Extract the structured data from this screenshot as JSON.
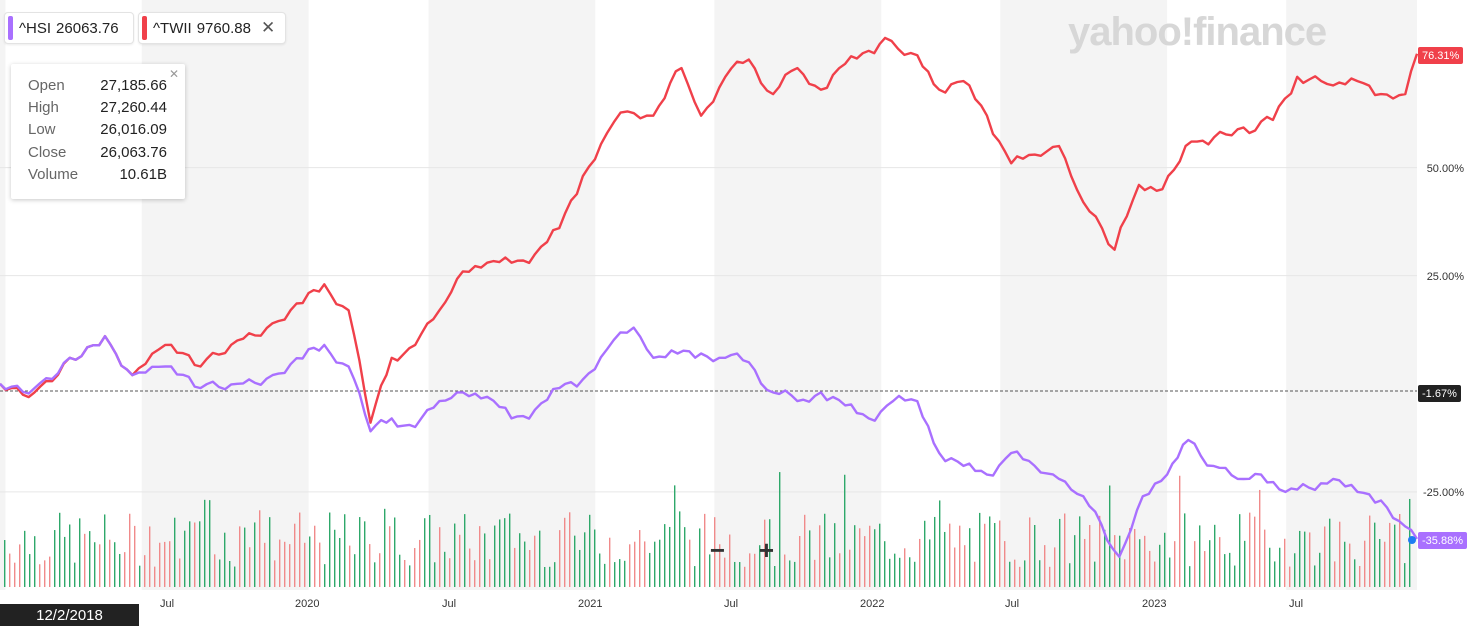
{
  "symbols": [
    {
      "symbol": "^HSI",
      "value": "26063.76",
      "color": "#a970ff"
    },
    {
      "symbol": "^TWII",
      "value": "9760.88",
      "color": "#f0404a",
      "close_label": "✕"
    }
  ],
  "tooltip": {
    "close_label": "✕",
    "rows": [
      {
        "label": "Open",
        "value": "27,185.66"
      },
      {
        "label": "High",
        "value": "27,260.44"
      },
      {
        "label": "Low",
        "value": "26,016.09"
      },
      {
        "label": "Close",
        "value": "26,063.76"
      },
      {
        "label": "Volume",
        "value": "10.61B"
      }
    ]
  },
  "watermark": "yahoo!finance",
  "zoom": {
    "minus": "−",
    "plus": "+"
  },
  "crosshair_date": "12/2/2018",
  "colors": {
    "twii": "#f0404a",
    "hsi": "#a970ff",
    "vol_up": "#2ea86a",
    "vol_down": "#f08a8a",
    "band": "#f4f4f4"
  },
  "chart_data": {
    "type": "line",
    "x_axis": {
      "ticks": [
        "Jul",
        "2020",
        "Jul",
        "2021",
        "Jul",
        "2022",
        "Jul",
        "2023",
        "Jul"
      ],
      "range": [
        "2018-12-02",
        "2023-11-15"
      ]
    },
    "y_axis": {
      "ticks": [
        "50.00%",
        "25.00%",
        "-25.00%"
      ],
      "ylim": [
        -35,
        80
      ]
    },
    "reference_line": {
      "value": -1.67,
      "label": "-1.67%"
    },
    "series": [
      {
        "name": "^TWII",
        "color": "#f0404a",
        "last_label": "76.31%",
        "points": [
          [
            "2018-12-02",
            0
          ],
          [
            "2019-01-15",
            -2
          ],
          [
            "2019-03-01",
            6
          ],
          [
            "2019-04-15",
            11
          ],
          [
            "2019-05-20",
            2
          ],
          [
            "2019-07-01",
            9
          ],
          [
            "2019-08-15",
            4
          ],
          [
            "2019-10-01",
            10
          ],
          [
            "2019-11-15",
            14
          ],
          [
            "2019-12-31",
            21
          ],
          [
            "2020-01-20",
            23
          ],
          [
            "2020-02-20",
            17
          ],
          [
            "2020-03-19",
            -9
          ],
          [
            "2020-04-15",
            6
          ],
          [
            "2020-05-15",
            9
          ],
          [
            "2020-06-15",
            17
          ],
          [
            "2020-07-15",
            26
          ],
          [
            "2020-08-15",
            28
          ],
          [
            "2020-09-15",
            28
          ],
          [
            "2020-10-15",
            30
          ],
          [
            "2020-11-15",
            36
          ],
          [
            "2020-12-15",
            48
          ],
          [
            "2021-01-15",
            58
          ],
          [
            "2021-02-10",
            63
          ],
          [
            "2021-03-15",
            62
          ],
          [
            "2021-04-20",
            73
          ],
          [
            "2021-05-15",
            62
          ],
          [
            "2021-06-15",
            71
          ],
          [
            "2021-07-15",
            75
          ],
          [
            "2021-08-15",
            67
          ],
          [
            "2021-09-15",
            73
          ],
          [
            "2021-10-15",
            68
          ],
          [
            "2021-11-15",
            74
          ],
          [
            "2021-12-15",
            77
          ],
          [
            "2022-01-05",
            80
          ],
          [
            "2022-02-15",
            76
          ],
          [
            "2022-03-15",
            68
          ],
          [
            "2022-04-15",
            70
          ],
          [
            "2022-05-15",
            62
          ],
          [
            "2022-06-15",
            51
          ],
          [
            "2022-07-15",
            53
          ],
          [
            "2022-08-15",
            55
          ],
          [
            "2022-09-15",
            42
          ],
          [
            "2022-10-25",
            31
          ],
          [
            "2022-11-25",
            46
          ],
          [
            "2022-12-25",
            45
          ],
          [
            "2023-01-31",
            56
          ],
          [
            "2023-03-01",
            57
          ],
          [
            "2023-04-15",
            58
          ],
          [
            "2023-05-15",
            61
          ],
          [
            "2023-06-15",
            71
          ],
          [
            "2023-07-31",
            69
          ],
          [
            "2023-08-31",
            70
          ],
          [
            "2023-09-30",
            67
          ],
          [
            "2023-10-31",
            67
          ],
          [
            "2023-11-15",
            76.31
          ]
        ]
      },
      {
        "name": "^HSI",
        "color": "#a970ff",
        "last_label": "-35.88%",
        "points": [
          [
            "2018-12-02",
            0
          ],
          [
            "2019-01-15",
            -1
          ],
          [
            "2019-03-01",
            6
          ],
          [
            "2019-04-15",
            11
          ],
          [
            "2019-05-20",
            2
          ],
          [
            "2019-07-01",
            4
          ],
          [
            "2019-08-15",
            -1
          ],
          [
            "2019-10-01",
            0
          ],
          [
            "2019-11-15",
            2
          ],
          [
            "2019-12-31",
            8
          ],
          [
            "2020-01-20",
            9
          ],
          [
            "2020-02-20",
            4
          ],
          [
            "2020-03-19",
            -11
          ],
          [
            "2020-04-15",
            -8
          ],
          [
            "2020-05-15",
            -10
          ],
          [
            "2020-06-15",
            -4
          ],
          [
            "2020-07-15",
            -2
          ],
          [
            "2020-08-15",
            -3
          ],
          [
            "2020-09-15",
            -8
          ],
          [
            "2020-10-15",
            -6
          ],
          [
            "2020-11-15",
            -1
          ],
          [
            "2020-12-15",
            1
          ],
          [
            "2021-01-15",
            8
          ],
          [
            "2021-02-18",
            13
          ],
          [
            "2021-03-15",
            6
          ],
          [
            "2021-04-15",
            7
          ],
          [
            "2021-05-15",
            7
          ],
          [
            "2021-06-15",
            6
          ],
          [
            "2021-07-15",
            5
          ],
          [
            "2021-08-15",
            -2
          ],
          [
            "2021-09-15",
            -4
          ],
          [
            "2021-10-15",
            -2
          ],
          [
            "2021-11-15",
            -5
          ],
          [
            "2021-12-15",
            -8
          ],
          [
            "2022-01-15",
            -4
          ],
          [
            "2022-02-15",
            -4
          ],
          [
            "2022-03-15",
            -16
          ],
          [
            "2022-04-15",
            -19
          ],
          [
            "2022-05-15",
            -21
          ],
          [
            "2022-06-15",
            -16
          ],
          [
            "2022-07-15",
            -19
          ],
          [
            "2022-08-15",
            -22
          ],
          [
            "2022-09-15",
            -26
          ],
          [
            "2022-10-31",
            -40
          ],
          [
            "2022-11-30",
            -26
          ],
          [
            "2022-12-31",
            -21
          ],
          [
            "2023-01-27",
            -13
          ],
          [
            "2023-02-28",
            -19
          ],
          [
            "2023-03-31",
            -22
          ],
          [
            "2023-04-30",
            -21
          ],
          [
            "2023-05-31",
            -25
          ],
          [
            "2023-06-30",
            -24
          ],
          [
            "2023-07-31",
            -22
          ],
          [
            "2023-08-31",
            -25
          ],
          [
            "2023-09-30",
            -27
          ],
          [
            "2023-10-31",
            -33
          ],
          [
            "2023-11-15",
            -35.88
          ]
        ]
      }
    ]
  }
}
